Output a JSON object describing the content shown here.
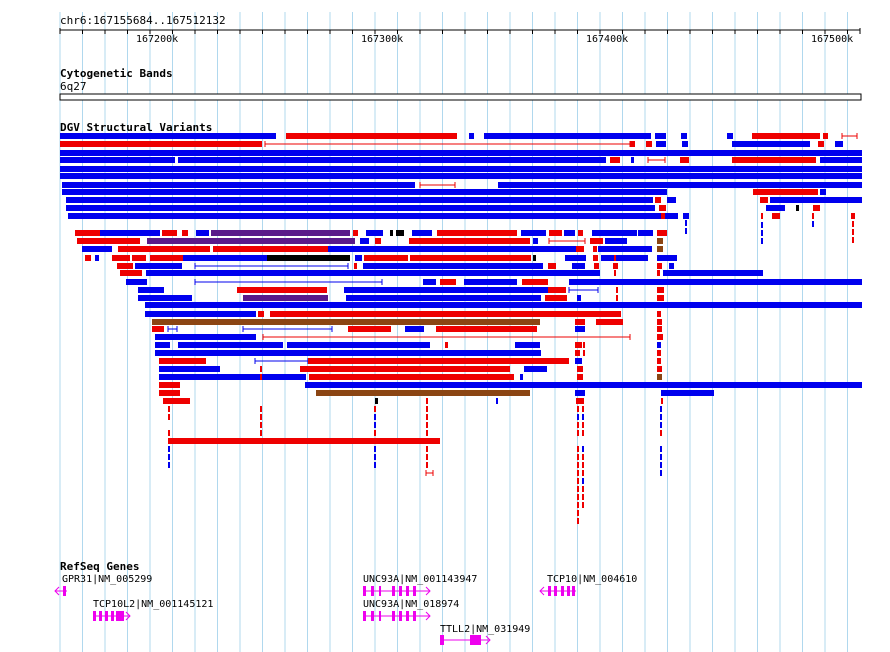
{
  "locus": "chr6:167155684..167512132",
  "ruler": {
    "ticks": [
      "167200k",
      "167300k",
      "167400k",
      "167500k"
    ]
  },
  "tracks": {
    "cytoband": {
      "title": "Cytogenetic Bands",
      "band": "6q27"
    },
    "dgv": {
      "title": "DGV Structural Variants"
    },
    "refseq": {
      "title": "RefSeq Genes"
    }
  },
  "genes": [
    {
      "label": "GPR31|NM_005299",
      "strand": "-"
    },
    {
      "label": "TCP10L2|NM_001145121",
      "strand": "+"
    },
    {
      "label": "UNC93A|NM_001143947",
      "strand": "+"
    },
    {
      "label": "UNC93A|NM_018974",
      "strand": "+"
    },
    {
      "label": "TTLL2|NM_031949",
      "strand": "+"
    },
    {
      "label": "TCP10|NM_004610",
      "strand": "-"
    }
  ],
  "colors": {
    "gain": "#0000ee",
    "loss": "#ee0000",
    "complex": "#5a1a8a",
    "inversion": "#8b4513",
    "other": "#000000",
    "gene": "#ee00ee",
    "grid": "#b0d8ee"
  }
}
